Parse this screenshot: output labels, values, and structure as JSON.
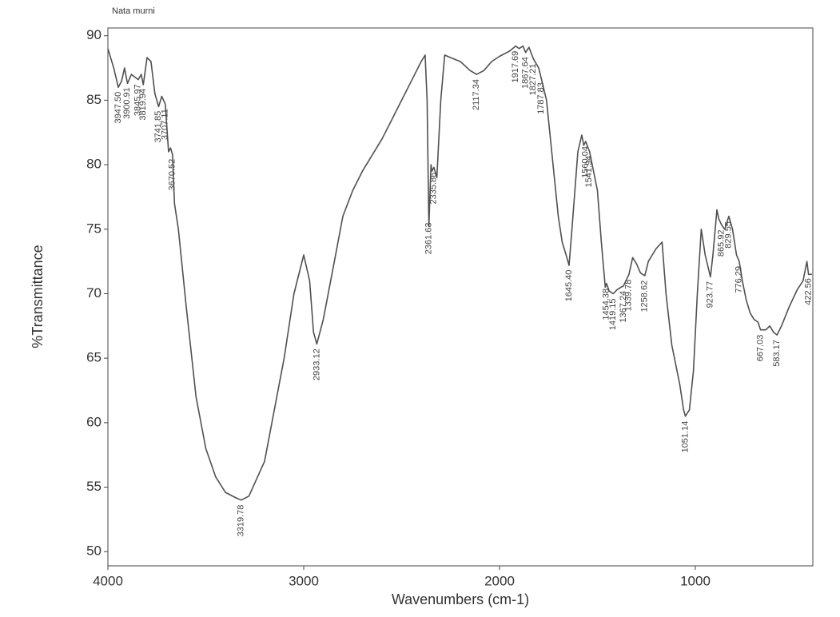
{
  "chart_data": {
    "type": "line",
    "annotation_title": "Nata murni",
    "xlabel": "Wavenumbers (cm-1)",
    "ylabel": "%Transmittance",
    "xlim": [
      4000,
      400
    ],
    "ylim": [
      48.9,
      90.6
    ],
    "xticks": [
      4000,
      3000,
      2000,
      1000
    ],
    "yticks": [
      50,
      55,
      60,
      65,
      70,
      75,
      80,
      85,
      90
    ],
    "series": [
      {
        "color": "#505050",
        "x": [
          4000,
          3970,
          3947,
          3930,
          3915,
          3900,
          3880,
          3845,
          3830,
          3819,
          3800,
          3780,
          3760,
          3741,
          3725,
          3707,
          3690,
          3680,
          3670,
          3660,
          3640,
          3600,
          3550,
          3500,
          3450,
          3400,
          3350,
          3319,
          3280,
          3200,
          3100,
          3050,
          3000,
          2970,
          2950,
          2933,
          2900,
          2850,
          2800,
          2750,
          2700,
          2600,
          2550,
          2500,
          2450,
          2400,
          2380,
          2370,
          2361,
          2350,
          2345,
          2335,
          2320,
          2300,
          2280,
          2250,
          2200,
          2150,
          2117,
          2080,
          2040,
          2000,
          1950,
          1917,
          1900,
          1880,
          1867,
          1850,
          1827,
          1800,
          1787,
          1760,
          1740,
          1720,
          1700,
          1680,
          1660,
          1645,
          1630,
          1600,
          1580,
          1570,
          1560,
          1540,
          1520,
          1500,
          1480,
          1460,
          1454,
          1440,
          1419,
          1400,
          1380,
          1367,
          1339,
          1320,
          1300,
          1280,
          1258,
          1240,
          1200,
          1170,
          1150,
          1120,
          1100,
          1080,
          1060,
          1051,
          1030,
          1010,
          990,
          970,
          950,
          923,
          910,
          890,
          880,
          865,
          850,
          829,
          810,
          790,
          776,
          760,
          740,
          720,
          700,
          680,
          667,
          640,
          620,
          600,
          583,
          560,
          520,
          480,
          450,
          430,
          422,
          405
        ],
        "values": [
          89,
          87.5,
          86,
          86.5,
          87.5,
          86.3,
          87,
          86.6,
          87,
          86.2,
          88.3,
          88,
          85.5,
          84.5,
          85.3,
          84.7,
          81,
          81.3,
          80.8,
          77,
          75,
          69,
          62,
          58,
          55.8,
          54.6,
          54.2,
          54,
          54.3,
          57,
          65,
          70,
          73,
          71,
          67,
          66.1,
          68,
          72,
          76,
          78,
          79.5,
          82,
          83.5,
          85,
          86.5,
          88,
          88.5,
          85,
          75.2,
          80,
          79.5,
          79.8,
          79,
          85,
          88.5,
          88.3,
          88,
          87.3,
          87,
          87.3,
          88,
          88.4,
          88.8,
          89.2,
          89,
          89.2,
          88.7,
          89.1,
          88.2,
          87.5,
          86.7,
          85,
          82,
          79,
          76,
          74,
          73,
          72.2,
          75,
          81,
          82.3,
          81.5,
          81.8,
          81,
          79.5,
          78,
          74,
          70.5,
          70.8,
          70.2,
          70,
          70.3,
          70.5,
          70.6,
          71.5,
          72.8,
          72.3,
          71.6,
          71.4,
          72.5,
          73.5,
          74,
          70,
          66,
          64.5,
          63,
          61,
          60.5,
          61,
          64,
          70,
          75,
          73,
          71.3,
          73,
          76.5,
          75.8,
          75.3,
          75,
          76,
          75,
          73,
          72.5,
          71,
          69.5,
          68.5,
          68,
          67.8,
          67.2,
          67.2,
          67.5,
          67,
          66.8,
          67.5,
          69,
          70.3,
          71,
          72.5,
          71.5,
          71.5
        ]
      }
    ],
    "peaks": [
      {
        "value": 3947.5,
        "label": "3947.50"
      },
      {
        "value": 3900.91,
        "label": "3900.91"
      },
      {
        "value": 3845.97,
        "label": "3845.97"
      },
      {
        "value": 3819.94,
        "label": "3819.94"
      },
      {
        "value": 3741.85,
        "label": "3741.85"
      },
      {
        "value": 3707.11,
        "label": "3707.11"
      },
      {
        "value": 3670.52,
        "label": "3670.52"
      },
      {
        "value": 3319.78,
        "label": "3319.78"
      },
      {
        "value": 2933.12,
        "label": "2933.12"
      },
      {
        "value": 2361.63,
        "label": "2361.63"
      },
      {
        "value": 2335.86,
        "label": "2335.86"
      },
      {
        "value": 2117.34,
        "label": "2117.34"
      },
      {
        "value": 1917.69,
        "label": "1917.69"
      },
      {
        "value": 1867.64,
        "label": "1867.64"
      },
      {
        "value": 1827.21,
        "label": "1827.21"
      },
      {
        "value": 1787.83,
        "label": "1787.83"
      },
      {
        "value": 1645.4,
        "label": "1645.40"
      },
      {
        "value": 1560.04,
        "label": "1560.04"
      },
      {
        "value": 1541.94,
        "label": "1541.94"
      },
      {
        "value": 1454.38,
        "label": "1454.38"
      },
      {
        "value": 1419.15,
        "label": "1419.15"
      },
      {
        "value": 1367.24,
        "label": "1367.24"
      },
      {
        "value": 1339.78,
        "label": "1339.78"
      },
      {
        "value": 1258.62,
        "label": "1258.62"
      },
      {
        "value": 1051.14,
        "label": "1051.14"
      },
      {
        "value": 923.77,
        "label": "923.77"
      },
      {
        "value": 865.92,
        "label": "865.92"
      },
      {
        "value": 829.55,
        "label": "829.55"
      },
      {
        "value": 776.29,
        "label": "776.29"
      },
      {
        "value": 667.03,
        "label": "667.03"
      },
      {
        "value": 583.17,
        "label": "583.17"
      },
      {
        "value": 422.56,
        "label": "422.56"
      }
    ]
  }
}
